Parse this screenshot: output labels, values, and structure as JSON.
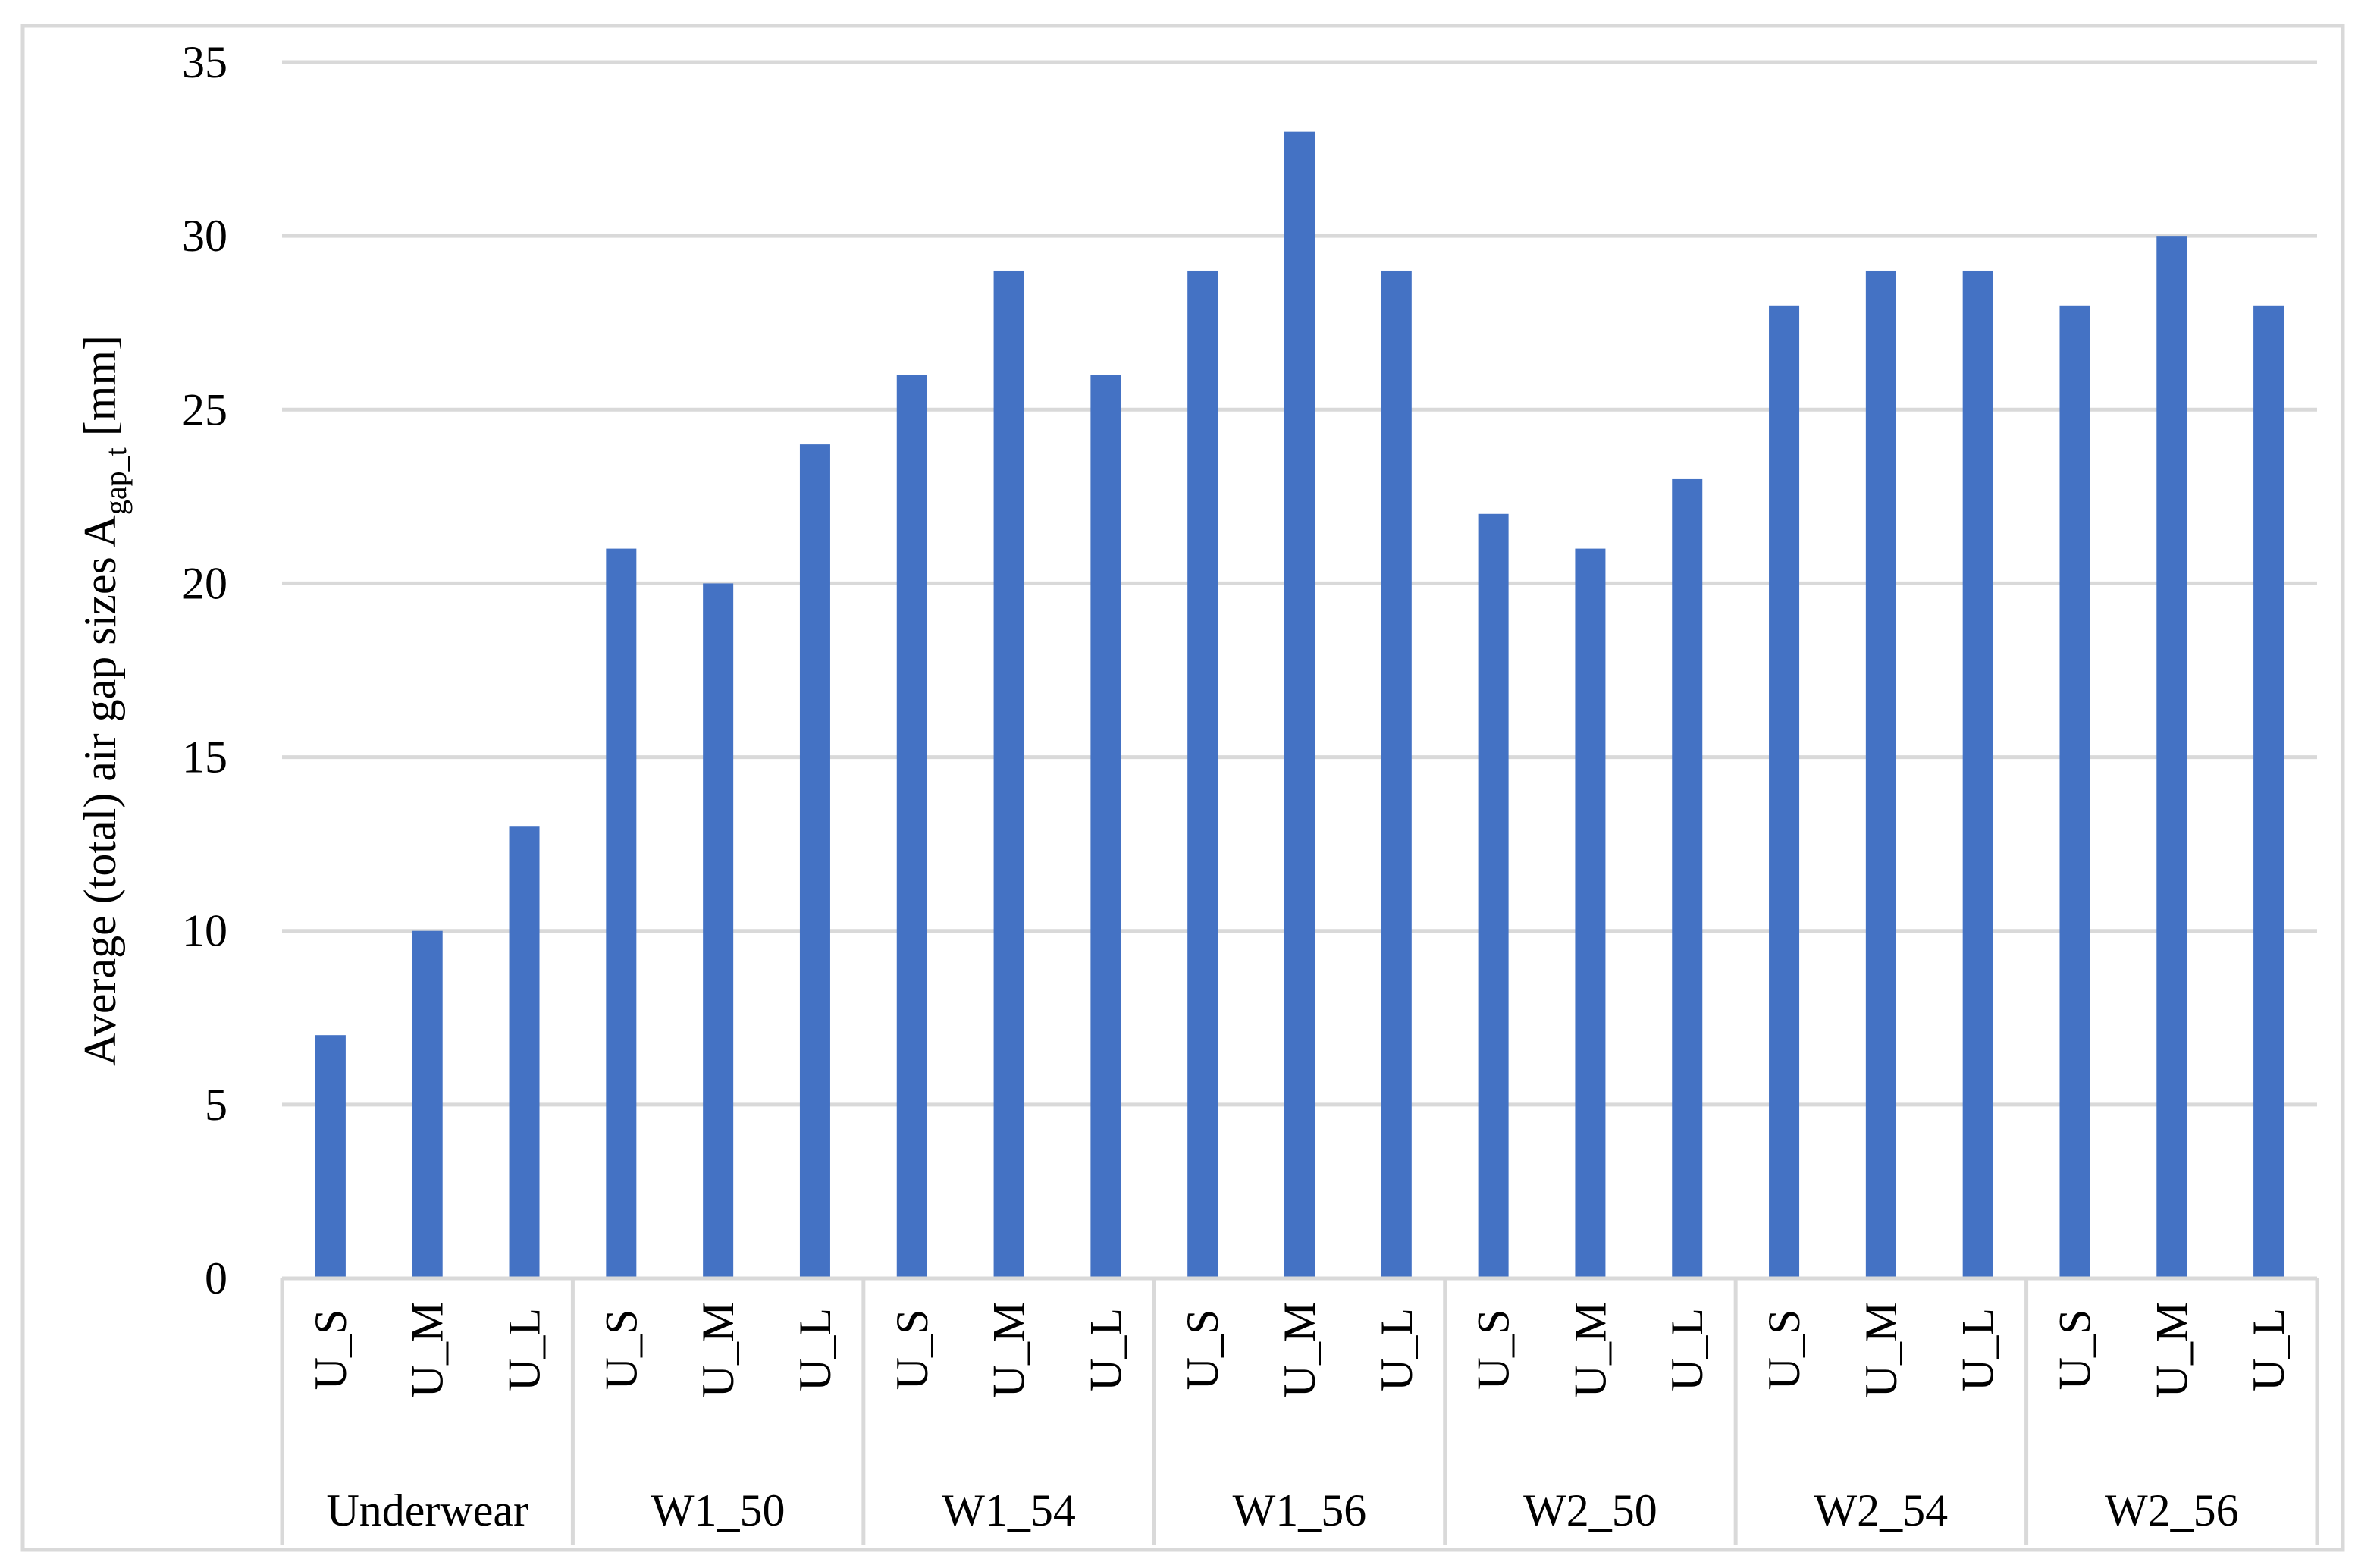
{
  "chart_data": {
    "type": "bar",
    "ylabel": {
      "main": "Average (total) air gap sizes A",
      "subscript": "gap_t",
      "unit": " [mm]"
    },
    "ylim": [
      0,
      35
    ],
    "yticks": [
      0,
      5,
      10,
      15,
      20,
      25,
      30,
      35
    ],
    "grid": true,
    "bar_color": "#4472C4",
    "grid_color": "#D9D9D9",
    "border_color": "#D9D9D9",
    "groups": [
      {
        "name": "Underwear",
        "categories": [
          "U_S",
          "U_M",
          "U_L"
        ],
        "values": [
          7,
          10,
          13
        ]
      },
      {
        "name": "W1_50",
        "categories": [
          "U_S",
          "U_M",
          "U_L"
        ],
        "values": [
          21,
          20,
          24
        ]
      },
      {
        "name": "W1_54",
        "categories": [
          "U_S",
          "U_M",
          "U_L"
        ],
        "values": [
          26,
          29,
          26
        ]
      },
      {
        "name": "W1_56",
        "categories": [
          "U_S",
          "U_M",
          "U_L"
        ],
        "values": [
          29,
          33,
          29
        ]
      },
      {
        "name": "W2_50",
        "categories": [
          "U_S",
          "U_M",
          "U_L"
        ],
        "values": [
          22,
          21,
          23
        ]
      },
      {
        "name": "W2_54",
        "categories": [
          "U_S",
          "U_M",
          "U_L"
        ],
        "values": [
          28,
          29,
          29
        ]
      },
      {
        "name": "W2_56",
        "categories": [
          "U_S",
          "U_M",
          "U_L"
        ],
        "values": [
          28,
          30,
          28
        ]
      }
    ]
  }
}
